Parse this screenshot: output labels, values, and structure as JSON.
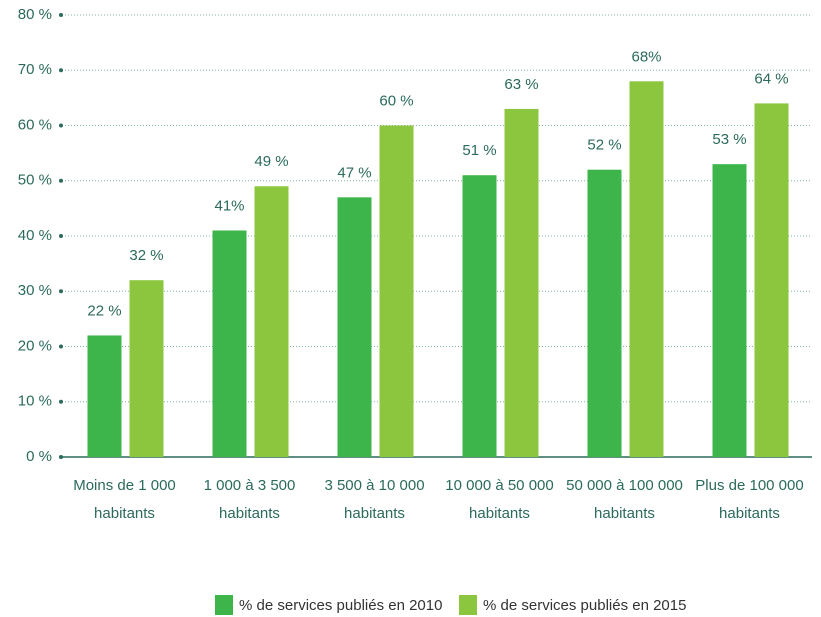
{
  "chart_data": {
    "type": "bar",
    "categories": [
      "Moins de 1 000\nhabitants",
      "1 000 à 3 500\nhabitants",
      "3 500 à 10 000\nhabitants",
      "10 000 à 50 000\nhabitants",
      "50 000 à 100 000\nhabitants",
      "Plus de 100 000\nhabitants"
    ],
    "series": [
      {
        "name": "% de services publiés en 2010",
        "color": "#3db54a",
        "values": [
          22,
          41,
          47,
          51,
          52,
          53
        ],
        "value_labels": [
          "22 %",
          "41%",
          "47 %",
          "51 %",
          "52 %",
          "53 %"
        ]
      },
      {
        "name": "% de services publiés en 2015",
        "color": "#8cc63f",
        "values": [
          32,
          49,
          60,
          63,
          68,
          64
        ],
        "value_labels": [
          "32 %",
          "49 %",
          "60 %",
          "63 %",
          "68%",
          "64 %"
        ]
      }
    ],
    "ylim": [
      0,
      80
    ],
    "yticks": [
      {
        "value": 0,
        "label": "0 %"
      },
      {
        "value": 10,
        "label": "10 %"
      },
      {
        "value": 20,
        "label": "20 %"
      },
      {
        "value": 30,
        "label": "30 %"
      },
      {
        "value": 40,
        "label": "40 %"
      },
      {
        "value": 50,
        "label": "50 %"
      },
      {
        "value": 60,
        "label": "60 %"
      },
      {
        "value": 70,
        "label": "70 %"
      },
      {
        "value": 80,
        "label": "80 %"
      }
    ],
    "grid": true,
    "legend": "bottom"
  }
}
